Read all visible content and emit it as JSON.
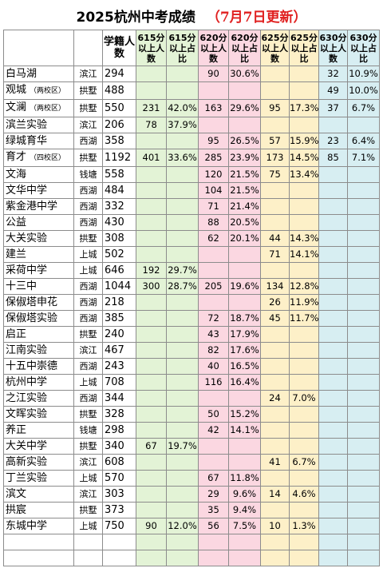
{
  "title": "2025杭州中考成绩",
  "update_note": "（7月7日更新）",
  "columns": [
    "",
    "",
    "学籍人数",
    "615分以上人数",
    "615分以上占比",
    "620分以上人数",
    "620分以上占比",
    "625分以上人数",
    "625分以上占比",
    "630分以上人数",
    "630分以上占比"
  ],
  "rows": [
    {
      "school": "白马湖",
      "tag": "",
      "district": "滨江",
      "students": "294",
      "c615n": "",
      "c615p": "",
      "c620n": "90",
      "c620p": "30.6%",
      "c625n": "",
      "c625p": "",
      "c630n": "32",
      "c630p": "10.9%"
    },
    {
      "school": "观城",
      "tag": "（两校区）",
      "district": "拱墅",
      "students": "488",
      "c615n": "",
      "c615p": "",
      "c620n": "",
      "c620p": "",
      "c625n": "",
      "c625p": "",
      "c630n": "49",
      "c630p": "10.0%"
    },
    {
      "school": "文澜",
      "tag": "（两校区）",
      "district": "拱墅",
      "students": "550",
      "c615n": "231",
      "c615p": "42.0%",
      "c620n": "163",
      "c620p": "29.6%",
      "c625n": "95",
      "c625p": "17.3%",
      "c630n": "37",
      "c630p": "6.7%"
    },
    {
      "school": "滨兰实验",
      "tag": "",
      "district": "滨江",
      "students": "206",
      "c615n": "78",
      "c615p": "37.9%",
      "c620n": "",
      "c620p": "",
      "c625n": "",
      "c625p": "",
      "c630n": "",
      "c630p": ""
    },
    {
      "school": "绿城育华",
      "tag": "",
      "district": "西湖",
      "students": "358",
      "c615n": "",
      "c615p": "",
      "c620n": "95",
      "c620p": "26.5%",
      "c625n": "57",
      "c625p": "15.9%",
      "c630n": "23",
      "c630p": "6.4%"
    },
    {
      "school": "育才",
      "tag": "（四校区）",
      "district": "拱墅",
      "students": "1192",
      "c615n": "401",
      "c615p": "33.6%",
      "c620n": "285",
      "c620p": "23.9%",
      "c625n": "173",
      "c625p": "14.5%",
      "c630n": "85",
      "c630p": "7.1%"
    },
    {
      "school": "文海",
      "tag": "",
      "district": "钱塘",
      "students": "558",
      "c615n": "",
      "c615p": "",
      "c620n": "120",
      "c620p": "21.5%",
      "c625n": "75",
      "c625p": "13.4%",
      "c630n": "",
      "c630p": ""
    },
    {
      "school": "文华中学",
      "tag": "",
      "district": "西湖",
      "students": "484",
      "c615n": "",
      "c615p": "",
      "c620n": "104",
      "c620p": "21.5%",
      "c625n": "",
      "c625p": "",
      "c630n": "",
      "c630p": ""
    },
    {
      "school": "紫金港中学",
      "tag": "",
      "district": "西湖",
      "students": "332",
      "c615n": "",
      "c615p": "",
      "c620n": "71",
      "c620p": "21.4%",
      "c625n": "",
      "c625p": "",
      "c630n": "",
      "c630p": ""
    },
    {
      "school": "公益",
      "tag": "",
      "district": "西湖",
      "students": "430",
      "c615n": "",
      "c615p": "",
      "c620n": "88",
      "c620p": "20.5%",
      "c625n": "",
      "c625p": "",
      "c630n": "",
      "c630p": ""
    },
    {
      "school": "大关实验",
      "tag": "",
      "district": "拱墅",
      "students": "308",
      "c615n": "",
      "c615p": "",
      "c620n": "62",
      "c620p": "20.1%",
      "c625n": "44",
      "c625p": "14.3%",
      "c630n": "",
      "c630p": ""
    },
    {
      "school": "建兰",
      "tag": "",
      "district": "上城",
      "students": "502",
      "c615n": "",
      "c615p": "",
      "c620n": "",
      "c620p": "",
      "c625n": "71",
      "c625p": "14.1%",
      "c630n": "",
      "c630p": ""
    },
    {
      "school": "采荷中学",
      "tag": "",
      "district": "上城",
      "students": "646",
      "c615n": "192",
      "c615p": "29.7%",
      "c620n": "",
      "c620p": "",
      "c625n": "",
      "c625p": "",
      "c630n": "",
      "c630p": ""
    },
    {
      "school": "十三中",
      "tag": "",
      "district": "西湖",
      "students": "1044",
      "c615n": "300",
      "c615p": "28.7%",
      "c620n": "205",
      "c620p": "19.6%",
      "c625n": "134",
      "c625p": "12.8%",
      "c630n": "",
      "c630p": ""
    },
    {
      "school": "保俶塔申花",
      "tag": "",
      "district": "西湖",
      "students": "218",
      "c615n": "",
      "c615p": "",
      "c620n": "",
      "c620p": "",
      "c625n": "26",
      "c625p": "11.9%",
      "c630n": "",
      "c630p": ""
    },
    {
      "school": "保俶塔实验",
      "tag": "",
      "district": "西湖",
      "students": "385",
      "c615n": "",
      "c615p": "",
      "c620n": "72",
      "c620p": "18.7%",
      "c625n": "45",
      "c625p": "11.7%",
      "c630n": "",
      "c630p": ""
    },
    {
      "school": "启正",
      "tag": "",
      "district": "拱墅",
      "students": "240",
      "c615n": "",
      "c615p": "",
      "c620n": "43",
      "c620p": "17.9%",
      "c625n": "",
      "c625p": "",
      "c630n": "",
      "c630p": ""
    },
    {
      "school": "江南实验",
      "tag": "",
      "district": "滨江",
      "students": "467",
      "c615n": "",
      "c615p": "",
      "c620n": "82",
      "c620p": "17.6%",
      "c625n": "",
      "c625p": "",
      "c630n": "",
      "c630p": ""
    },
    {
      "school": "十五中崇德",
      "tag": "",
      "district": "西湖",
      "students": "243",
      "c615n": "",
      "c615p": "",
      "c620n": "40",
      "c620p": "16.5%",
      "c625n": "",
      "c625p": "",
      "c630n": "",
      "c630p": ""
    },
    {
      "school": "杭州中学",
      "tag": "",
      "district": "上城",
      "students": "708",
      "c615n": "",
      "c615p": "",
      "c620n": "116",
      "c620p": "16.4%",
      "c625n": "",
      "c625p": "",
      "c630n": "",
      "c630p": ""
    },
    {
      "school": "之江实验",
      "tag": "",
      "district": "西湖",
      "students": "344",
      "c615n": "",
      "c615p": "",
      "c620n": "",
      "c620p": "",
      "c625n": "24",
      "c625p": "7.0%",
      "c630n": "",
      "c630p": ""
    },
    {
      "school": "文晖实验",
      "tag": "",
      "district": "拱墅",
      "students": "328",
      "c615n": "",
      "c615p": "",
      "c620n": "50",
      "c620p": "15.2%",
      "c625n": "",
      "c625p": "",
      "c630n": "",
      "c630p": ""
    },
    {
      "school": "养正",
      "tag": "",
      "district": "钱塘",
      "students": "298",
      "c615n": "",
      "c615p": "",
      "c620n": "42",
      "c620p": "14.1%",
      "c625n": "",
      "c625p": "",
      "c630n": "",
      "c630p": ""
    },
    {
      "school": "大关中学",
      "tag": "",
      "district": "拱墅",
      "students": "340",
      "c615n": "67",
      "c615p": "19.7%",
      "c620n": "",
      "c620p": "",
      "c625n": "",
      "c625p": "",
      "c630n": "",
      "c630p": ""
    },
    {
      "school": "高新实验",
      "tag": "",
      "district": "滨江",
      "students": "608",
      "c615n": "",
      "c615p": "",
      "c620n": "",
      "c620p": "",
      "c625n": "41",
      "c625p": "6.7%",
      "c630n": "",
      "c630p": ""
    },
    {
      "school": "丁兰实验",
      "tag": "",
      "district": "上城",
      "students": "570",
      "c615n": "",
      "c615p": "",
      "c620n": "67",
      "c620p": "11.8%",
      "c625n": "",
      "c625p": "",
      "c630n": "",
      "c630p": ""
    },
    {
      "school": "滨文",
      "tag": "",
      "district": "滨江",
      "students": "303",
      "c615n": "",
      "c615p": "",
      "c620n": "29",
      "c620p": "9.6%",
      "c625n": "14",
      "c625p": "4.6%",
      "c630n": "",
      "c630p": ""
    },
    {
      "school": "拱宸",
      "tag": "",
      "district": "拱墅",
      "students": "373",
      "c615n": "",
      "c615p": "",
      "c620n": "35",
      "c620p": "9.4%",
      "c625n": "",
      "c625p": "",
      "c630n": "",
      "c630p": ""
    },
    {
      "school": "东城中学",
      "tag": "",
      "district": "上城",
      "students": "750",
      "c615n": "90",
      "c615p": "12.0%",
      "c620n": "56",
      "c620p": "7.5%",
      "c625n": "10",
      "c625p": "1.3%",
      "c630n": "",
      "c630p": ""
    }
  ],
  "colors": {
    "band_615": "#e3f3d6",
    "band_620": "#fbd7e1",
    "band_625": "#fdf0c8",
    "band_630": "#d7eef2",
    "update_text": "#e02020"
  }
}
